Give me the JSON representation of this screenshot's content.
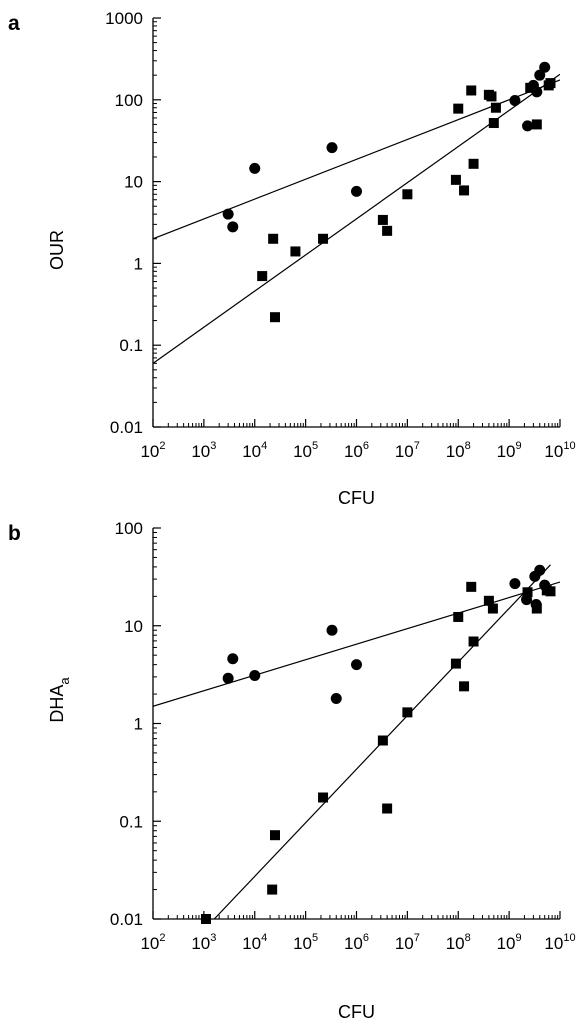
{
  "chart_data": [
    {
      "type": "scatter",
      "panel_label": "a",
      "xlabel": "CFU",
      "ylabel": "OUR",
      "ylabel_sub": "",
      "x_scale": "log",
      "y_scale": "log",
      "xlim": [
        100,
        10000000000
      ],
      "ylim": [
        0.01,
        1000
      ],
      "x_ticks": [
        {
          "value": 100,
          "base": "10",
          "exp": "2"
        },
        {
          "value": 1000,
          "base": "10",
          "exp": "3"
        },
        {
          "value": 10000,
          "base": "10",
          "exp": "4"
        },
        {
          "value": 100000,
          "base": "10",
          "exp": "5"
        },
        {
          "value": 1000000,
          "base": "10",
          "exp": "6"
        },
        {
          "value": 10000000,
          "base": "10",
          "exp": "7"
        },
        {
          "value": 100000000,
          "base": "10",
          "exp": "8"
        },
        {
          "value": 1000000000,
          "base": "10",
          "exp": "9"
        },
        {
          "value": 10000000000,
          "base": "10",
          "exp": "10"
        }
      ],
      "y_ticks": [
        {
          "value": 0.01,
          "label": "0.01"
        },
        {
          "value": 0.1,
          "label": "0.1"
        },
        {
          "value": 1,
          "label": "1"
        },
        {
          "value": 10,
          "label": "10"
        },
        {
          "value": 100,
          "label": "100"
        },
        {
          "value": 1000,
          "label": "1000"
        }
      ],
      "grid": false,
      "series": [
        {
          "marker": "circle",
          "color": "#000000",
          "points": [
            [
              3000,
              4.0
            ],
            [
              3700,
              2.8
            ],
            [
              10000,
              14.5
            ],
            [
              330000,
              26
            ],
            [
              1000000,
              7.6
            ],
            [
              1300000000,
              98
            ],
            [
              2300000000,
              48
            ],
            [
              3000000000,
              150
            ],
            [
              3500000000,
              125
            ],
            [
              4000000000,
              200
            ],
            [
              5000000000,
              250
            ]
          ],
          "fit": {
            "x": [
              100,
              10000000000
            ],
            "y": [
              2.0,
              175
            ]
          }
        },
        {
          "marker": "square",
          "color": "#000000",
          "points": [
            [
              14000,
              0.7
            ],
            [
              23000,
              2.0
            ],
            [
              25000,
              0.22
            ],
            [
              63000,
              1.4
            ],
            [
              220000,
              2.0
            ],
            [
              3300000,
              3.4
            ],
            [
              4000000,
              2.5
            ],
            [
              10000000,
              7.0
            ],
            [
              90000000,
              10.5
            ],
            [
              100000000,
              78
            ],
            [
              130000000,
              7.8
            ],
            [
              180000000,
              130
            ],
            [
              200000000,
              16.5
            ],
            [
              400000000,
              115
            ],
            [
              450000000,
              110
            ],
            [
              500000000,
              52
            ],
            [
              550000000,
              80
            ],
            [
              2600000000,
              140
            ],
            [
              3500000000,
              50
            ],
            [
              6000000000,
              150
            ],
            [
              6500000000,
              160
            ]
          ],
          "fit": {
            "x": [
              100,
              10000000000
            ],
            "y": [
              0.06,
              205
            ]
          }
        }
      ]
    },
    {
      "type": "scatter",
      "panel_label": "b",
      "xlabel": "CFU",
      "ylabel": "DHA",
      "ylabel_sub": "a",
      "x_scale": "log",
      "y_scale": "log",
      "xlim": [
        100,
        10000000000
      ],
      "ylim": [
        0.01,
        100
      ],
      "x_ticks": [
        {
          "value": 100,
          "base": "10",
          "exp": "2"
        },
        {
          "value": 1000,
          "base": "10",
          "exp": "3"
        },
        {
          "value": 10000,
          "base": "10",
          "exp": "4"
        },
        {
          "value": 100000,
          "base": "10",
          "exp": "5"
        },
        {
          "value": 1000000,
          "base": "10",
          "exp": "6"
        },
        {
          "value": 10000000,
          "base": "10",
          "exp": "7"
        },
        {
          "value": 100000000,
          "base": "10",
          "exp": "8"
        },
        {
          "value": 1000000000,
          "base": "10",
          "exp": "9"
        },
        {
          "value": 10000000000,
          "base": "10",
          "exp": "10"
        }
      ],
      "y_ticks": [
        {
          "value": 0.01,
          "label": "0.01"
        },
        {
          "value": 0.1,
          "label": "0.1"
        },
        {
          "value": 1,
          "label": "1"
        },
        {
          "value": 10,
          "label": "10"
        },
        {
          "value": 100,
          "label": "100"
        }
      ],
      "grid": false,
      "series": [
        {
          "marker": "circle",
          "color": "#000000",
          "points": [
            [
              3000,
              2.9
            ],
            [
              3700,
              4.6
            ],
            [
              10000,
              3.1
            ],
            [
              330000,
              9.0
            ],
            [
              400000,
              1.8
            ],
            [
              1000000,
              4.0
            ],
            [
              1300000000,
              27
            ],
            [
              2200000000,
              18.5
            ],
            [
              3200000000,
              32
            ],
            [
              3400000000,
              16.5
            ],
            [
              4000000000,
              37
            ],
            [
              5000000000,
              26
            ]
          ],
          "fit": {
            "x": [
              100,
              10000000000
            ],
            "y": [
              1.5,
              28
            ]
          }
        },
        {
          "marker": "square",
          "color": "#000000",
          "points": [
            [
              1100,
              0.01
            ],
            [
              22000,
              0.02
            ],
            [
              25000,
              0.072
            ],
            [
              220000,
              0.175
            ],
            [
              3300000,
              0.67
            ],
            [
              4000000,
              0.135
            ],
            [
              10000000,
              1.3
            ],
            [
              90000000,
              4.1
            ],
            [
              100000000,
              12.3
            ],
            [
              130000000,
              2.4
            ],
            [
              180000000,
              25
            ],
            [
              200000000,
              6.9
            ],
            [
              400000000,
              18
            ],
            [
              480000000,
              15
            ],
            [
              2300000000,
              22
            ],
            [
              3500000000,
              15
            ],
            [
              5500000000,
              23
            ],
            [
              6500000000,
              22.5
            ]
          ],
          "fit": {
            "x": [
              1600,
              6500000000
            ],
            "y": [
              0.01,
              42
            ]
          }
        }
      ]
    }
  ]
}
